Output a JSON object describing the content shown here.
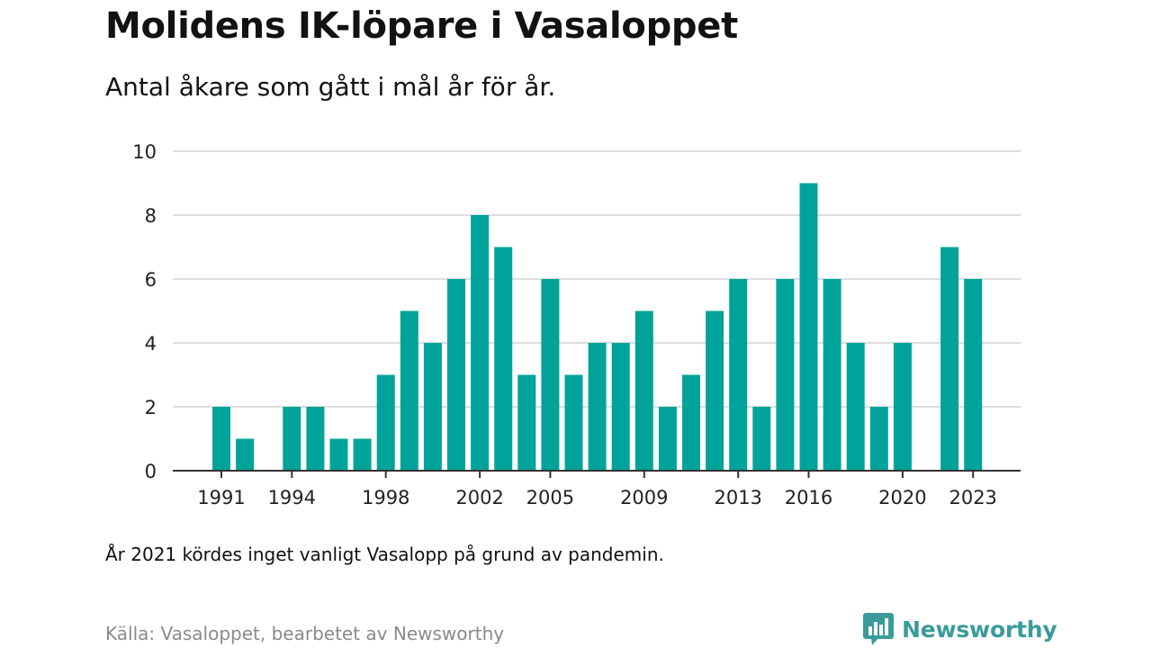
{
  "header": {
    "title": "Molidens IK-löpare i Vasaloppet",
    "subtitle": "Antal åkare som gått i mål år för år."
  },
  "footer": {
    "note": "År 2021 kördes inget vanligt Vasalopp på grund av pandemin.",
    "source": "Källa: Vasaloppet, bearbetet av Newsworthy",
    "brand": "Newsworthy",
    "brand_icon": "newsworthy-logo-icon"
  },
  "colors": {
    "bar": "#00a39a",
    "grid": "#dddddd",
    "axis": "#333333",
    "brand": "#3a9b9b"
  },
  "chart_data": {
    "type": "bar",
    "title": "Molidens IK-löpare i Vasaloppet",
    "subtitle": "Antal åkare som gått i mål år för år.",
    "xlabel": "",
    "ylabel": "",
    "x": [
      1991,
      1992,
      1993,
      1994,
      1995,
      1996,
      1997,
      1998,
      1999,
      2000,
      2001,
      2002,
      2003,
      2004,
      2005,
      2006,
      2007,
      2008,
      2009,
      2010,
      2011,
      2012,
      2013,
      2014,
      2015,
      2016,
      2017,
      2018,
      2019,
      2020,
      2021,
      2022,
      2023
    ],
    "values": [
      2,
      1,
      0,
      2,
      2,
      1,
      1,
      3,
      5,
      4,
      6,
      8,
      7,
      3,
      6,
      3,
      4,
      4,
      5,
      2,
      3,
      5,
      6,
      2,
      6,
      9,
      6,
      4,
      2,
      4,
      0,
      7,
      6
    ],
    "x_tick_labels": [
      "1991",
      "1994",
      "1998",
      "2002",
      "2005",
      "2009",
      "2013",
      "2016",
      "2020",
      "2023"
    ],
    "y_ticks": [
      0,
      2,
      4,
      6,
      8,
      10
    ],
    "ylim": [
      0,
      10
    ],
    "grid": true
  }
}
